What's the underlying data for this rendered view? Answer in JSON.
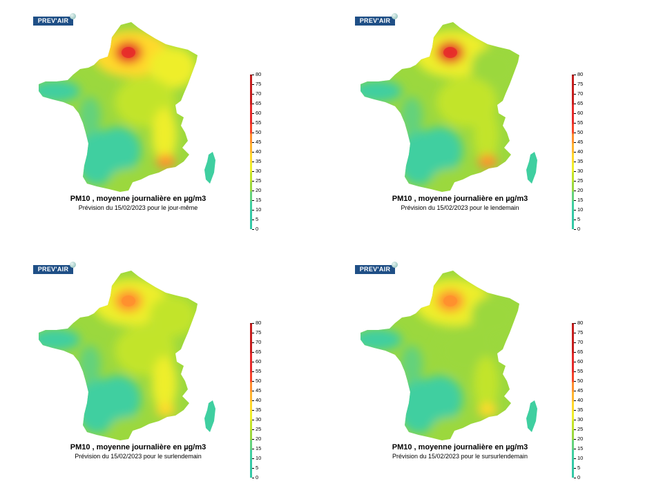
{
  "logo_text": "PREV'AIR",
  "legend": {
    "ticks": [
      80,
      75,
      70,
      65,
      60,
      55,
      50,
      45,
      40,
      35,
      30,
      25,
      20,
      15,
      10,
      5,
      0
    ],
    "colors": {
      "0": "#34c9a6",
      "10": "#3fcfa0",
      "15": "#64d27c",
      "20": "#9bd83e",
      "25": "#c2e42a",
      "30": "#eeee2a",
      "35": "#ffd92a",
      "40": "#ffb52e",
      "45": "#ff8f2e",
      "50": "#f6442a",
      "55": "#e62a2a",
      "65": "#c71d1d",
      "80": "#8a0f0f"
    }
  },
  "panels": [
    {
      "title": "PM10 , moyenne journalière en µg/m3",
      "subtitle": "Prévision du 15/02/2023 pour le jour-même",
      "hotspot_level": 55,
      "north_level": 38,
      "center_level": 24,
      "south_level": 12
    },
    {
      "title": "PM10 , moyenne journalière en µg/m3",
      "subtitle": "Prévision du 15/02/2023 pour le lendemain",
      "hotspot_level": 55,
      "north_level": 30,
      "center_level": 22,
      "south_level": 11
    },
    {
      "title": "PM10 , moyenne journalière en µg/m3",
      "subtitle": "Prévision du 15/02/2023 pour le surlendemain",
      "hotspot_level": 48,
      "north_level": 32,
      "center_level": 24,
      "south_level": 13
    },
    {
      "title": "PM10 , moyenne journalière en µg/m3",
      "subtitle": "Prévision du 15/02/2023 pour le sursurlendemain",
      "hotspot_level": 45,
      "north_level": 30,
      "center_level": 20,
      "south_level": 11
    }
  ]
}
